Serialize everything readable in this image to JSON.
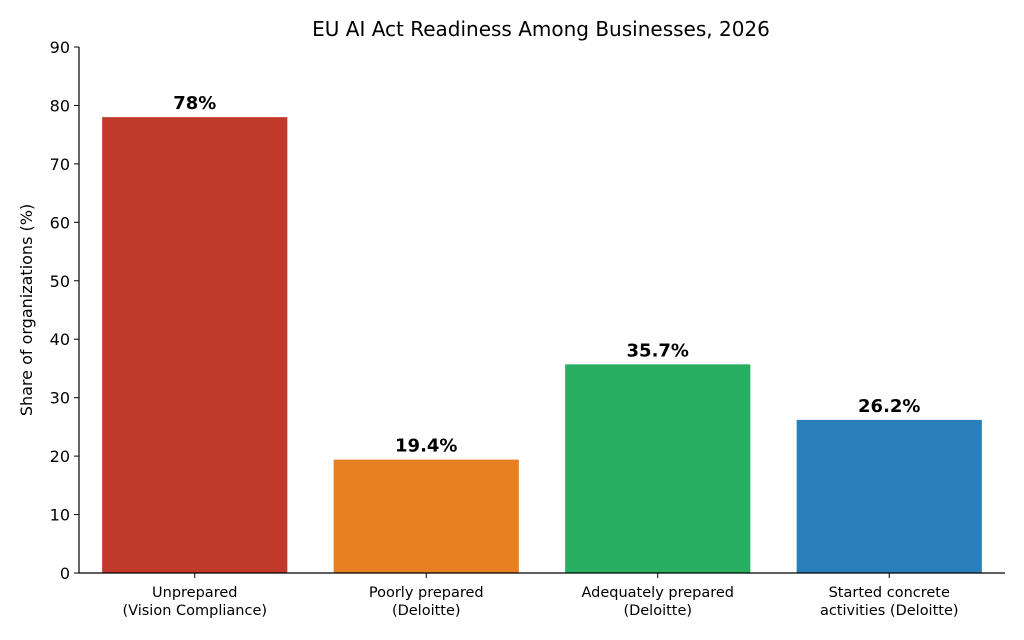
{
  "chart_data": {
    "type": "bar",
    "title": "EU AI Act Readiness Among Businesses, 2026",
    "xlabel": "",
    "ylabel": "Share of organizations (%)",
    "ylim": [
      0,
      90
    ],
    "yticks": [
      0,
      10,
      20,
      30,
      40,
      50,
      60,
      70,
      80,
      90
    ],
    "grid": false,
    "categories": [
      [
        "Unprepared",
        "(Vision Compliance)"
      ],
      [
        "Poorly prepared",
        "(Deloitte)"
      ],
      [
        "Adequately prepared",
        "(Deloitte)"
      ],
      [
        "Started concrete",
        "activities (Deloitte)"
      ]
    ],
    "values": [
      78,
      19.4,
      35.7,
      26.2
    ],
    "data_labels": [
      "78%",
      "19.4%",
      "35.7%",
      "26.2%"
    ],
    "colors": [
      "#c0392b",
      "#e67e22",
      "#27ae60",
      "#2980b9"
    ]
  }
}
